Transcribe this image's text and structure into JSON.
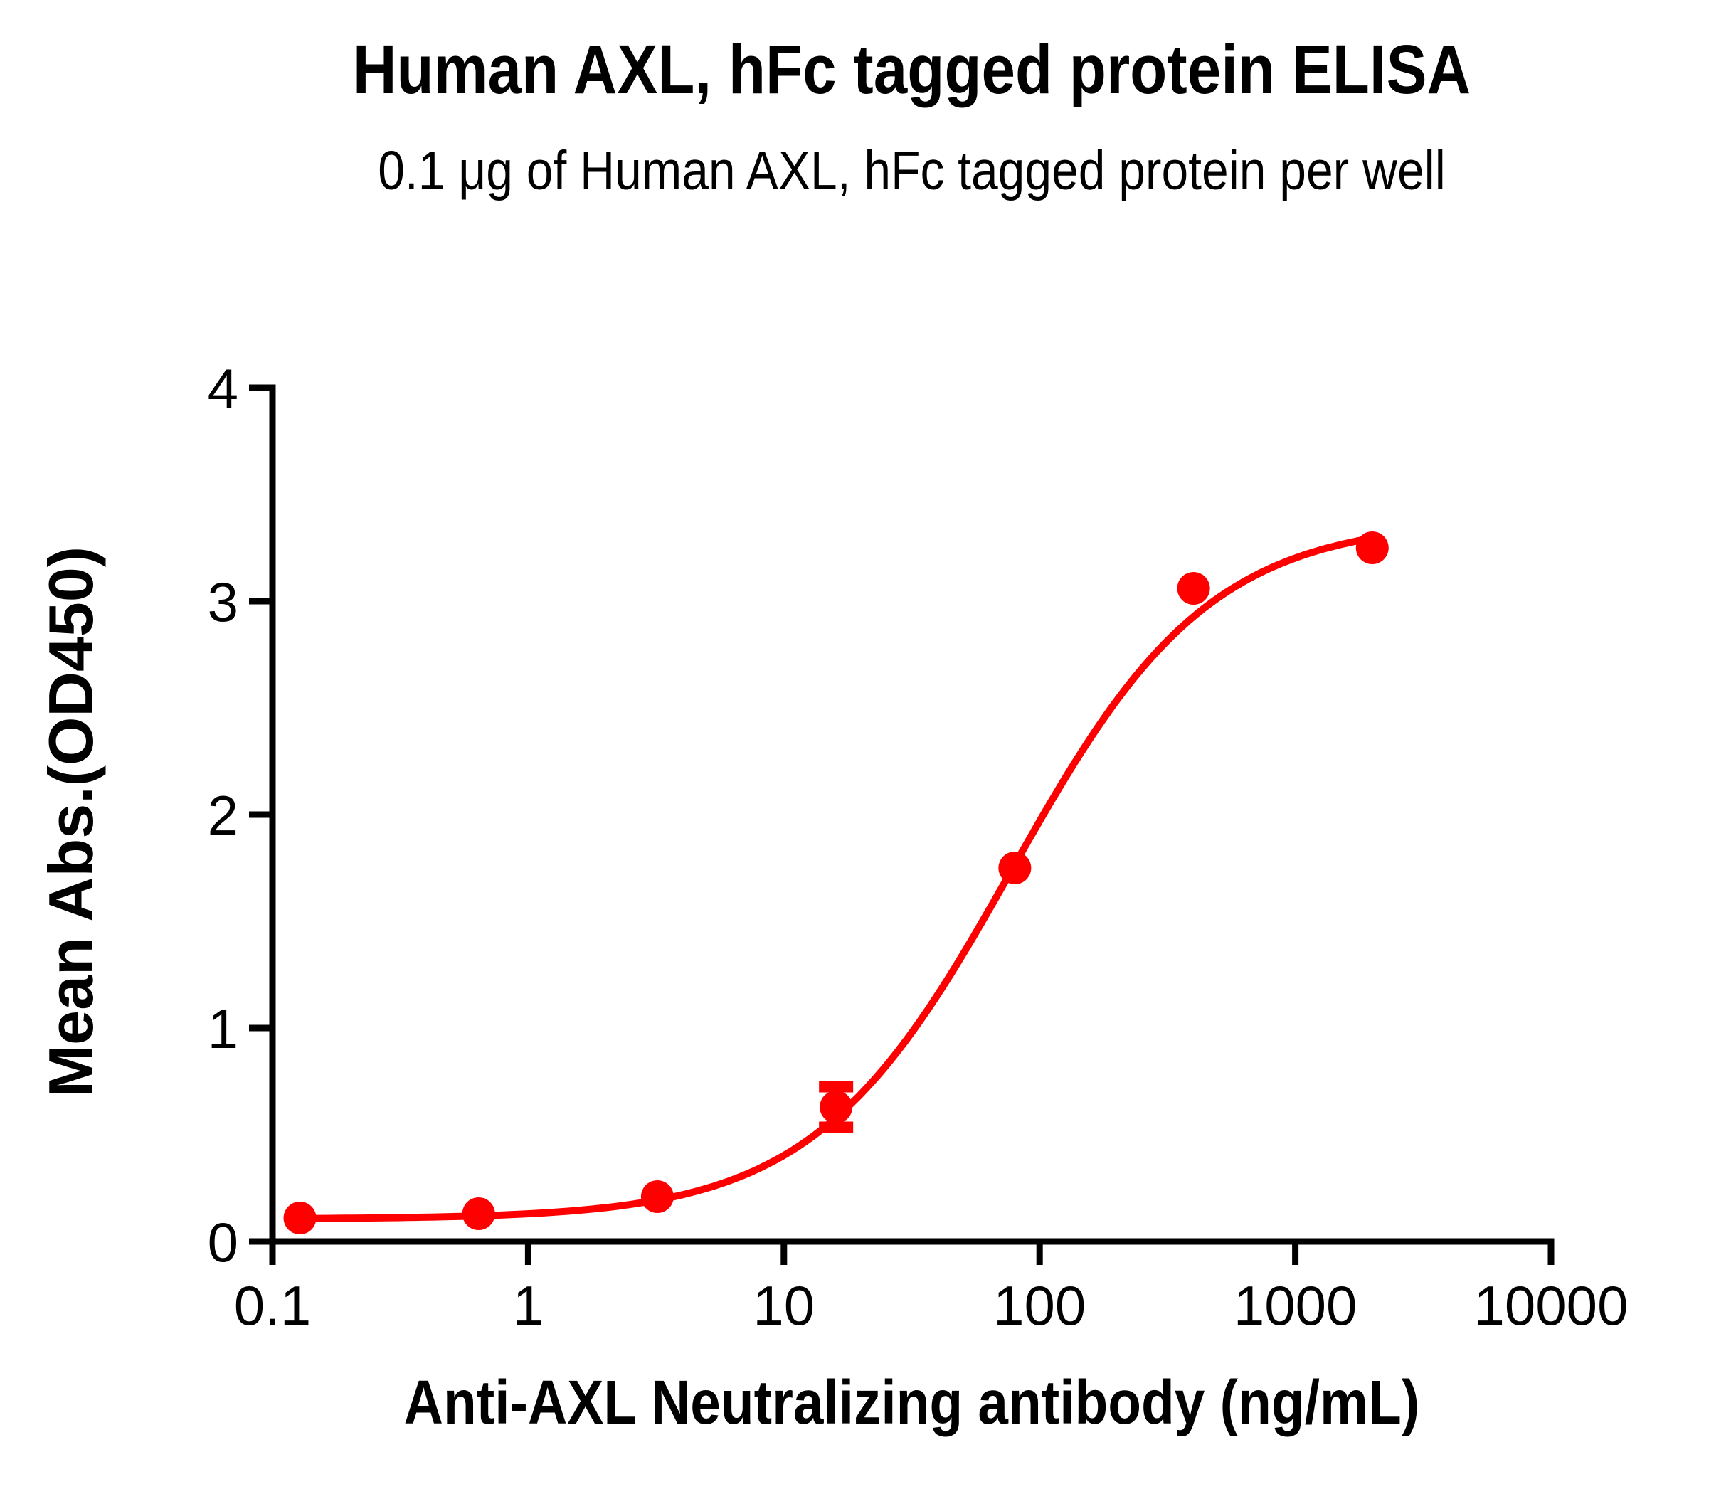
{
  "chart_data": {
    "type": "scatter",
    "title": "Human AXL, hFc tagged protein ELISA",
    "subtitle": "0.1 μg of Human AXL, hFc tagged protein per well",
    "xlabel": "Anti-AXL Neutralizing antibody (ng/mL)",
    "ylabel": "Mean Abs.(OD450)",
    "x_scale": "log10",
    "xlim": [
      0.1,
      10000
    ],
    "ylim": [
      0,
      4
    ],
    "x_ticks": [
      0.1,
      1,
      10,
      100,
      1000,
      10000
    ],
    "x_tick_labels": [
      "0.1",
      "1",
      "10",
      "100",
      "1000",
      "10000"
    ],
    "y_ticks": [
      0,
      1,
      2,
      3,
      4
    ],
    "y_tick_labels": [
      "0",
      "1",
      "2",
      "3",
      "4"
    ],
    "grid": false,
    "legend": "none",
    "colors": {
      "series": "#FF0000",
      "axis": "#000000",
      "text": "#000000"
    },
    "series": [
      {
        "name": "Anti-AXL Neutralizing antibody",
        "marker": "circle",
        "color": "#FF0000",
        "points": [
          {
            "x": 0.128,
            "y": 0.11,
            "y_err": 0
          },
          {
            "x": 0.64,
            "y": 0.13,
            "y_err": 0
          },
          {
            "x": 3.2,
            "y": 0.21,
            "y_err": 0
          },
          {
            "x": 16,
            "y": 0.63,
            "y_err": 0.095
          },
          {
            "x": 80,
            "y": 1.75,
            "y_err": 0
          },
          {
            "x": 400,
            "y": 3.06,
            "y_err": 0
          },
          {
            "x": 2000,
            "y": 3.25,
            "y_err": 0
          }
        ]
      }
    ],
    "fit_curve": {
      "model": "4PL",
      "bottom": 0.105,
      "top": 3.38,
      "ec50": 78,
      "hill": 1.12,
      "x_range": [
        0.128,
        2000
      ],
      "color": "#FF0000"
    }
  }
}
